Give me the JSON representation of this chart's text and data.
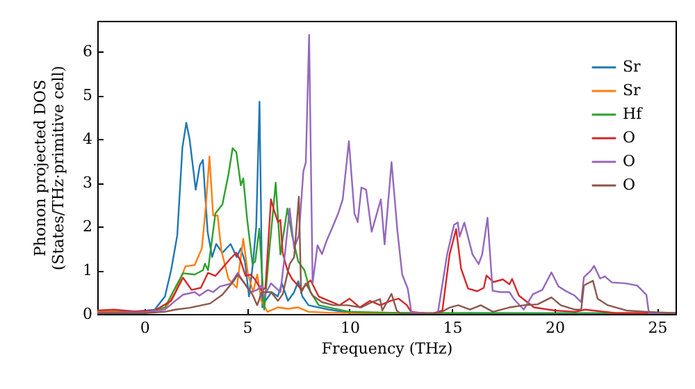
{
  "chart_data": {
    "type": "line",
    "xlabel": "Frequency (THz)",
    "ylabel": "Phonon projected DOS\n(States/THz·primitive cell)",
    "xlim": [
      -2.3,
      25.9
    ],
    "ylim": [
      0,
      6.7
    ],
    "xticks": [
      0,
      5,
      10,
      15,
      20,
      25
    ],
    "yticks": [
      0,
      1,
      2,
      3,
      4,
      5,
      6
    ],
    "legend": "top right",
    "series": [
      {
        "name": "Sr",
        "color": "#1f77b4",
        "x": [
          -2.3,
          -1.5,
          -0.5,
          0.5,
          1.0,
          1.3,
          1.6,
          1.85,
          2.04,
          2.2,
          2.5,
          2.7,
          2.85,
          3.08,
          3.3,
          3.5,
          3.8,
          4.0,
          4.2,
          4.5,
          4.7,
          4.9,
          5.1,
          5.3,
          5.45,
          5.61,
          5.75,
          5.9,
          6.2,
          6.5,
          6.7,
          7.0,
          7.3,
          7.5,
          7.7,
          8.0,
          8.5,
          9.0,
          10.0,
          12.0,
          14,
          16,
          18,
          20,
          22,
          25.9
        ],
        "values": [
          0.05,
          0.07,
          0.05,
          0.1,
          0.4,
          1.0,
          1.8,
          3.8,
          4.37,
          4.0,
          2.84,
          3.4,
          3.52,
          1.88,
          1.3,
          1.6,
          1.4,
          1.5,
          1.6,
          1.3,
          1.5,
          1.2,
          0.4,
          1.2,
          2.0,
          4.85,
          0.15,
          0.3,
          0.5,
          0.4,
          0.7,
          0.3,
          0.5,
          0.75,
          0.4,
          0.2,
          0.15,
          0.1,
          0.03,
          0.02,
          0.01,
          0.02,
          0.02,
          0.02,
          0.02,
          0.02
        ]
      },
      {
        "name": "Sr",
        "color": "#ff7f0e",
        "x": [
          -2.3,
          -1.5,
          0,
          1.0,
          1.5,
          2.0,
          2.45,
          2.8,
          3.0,
          3.17,
          3.35,
          3.57,
          3.75,
          4.1,
          4.5,
          4.82,
          5.04,
          5.3,
          5.5,
          5.7,
          6.0,
          6.5,
          7.0,
          7.5,
          8.0,
          9.0,
          12,
          16
        ],
        "values": [
          0.05,
          0.07,
          0.05,
          0.1,
          0.5,
          1.09,
          1.12,
          1.5,
          2.5,
          3.6,
          2.25,
          2.25,
          1.45,
          0.8,
          0.6,
          1.72,
          0.93,
          0.5,
          0.9,
          0.3,
          0.05,
          0.15,
          0.12,
          0.15,
          0.05,
          0.03,
          0.01,
          0.01
        ]
      },
      {
        "name": "Hf",
        "color": "#2ca02c",
        "x": [
          -2.3,
          -1,
          0,
          1.0,
          1.5,
          1.88,
          2.45,
          2.85,
          2.95,
          3.1,
          3.46,
          3.8,
          4.1,
          4.3,
          4.48,
          4.7,
          4.82,
          5.0,
          5.27,
          5.4,
          5.6,
          5.84,
          6.1,
          6.4,
          6.63,
          6.97,
          7.2,
          7.5,
          7.8,
          8.1,
          8.5,
          9.0,
          10,
          12,
          16,
          20,
          25.9
        ],
        "values": [
          0.03,
          0.04,
          0.04,
          0.15,
          0.6,
          0.93,
          0.9,
          1.0,
          1.15,
          1.0,
          2.3,
          2.5,
          3.2,
          3.79,
          3.7,
          2.94,
          3.1,
          2.2,
          1.14,
          1.2,
          1.95,
          0.1,
          1.5,
          3.0,
          1.36,
          2.41,
          1.8,
          1.2,
          1.0,
          0.5,
          0.2,
          0.15,
          0.05,
          0.03,
          0.02,
          0.01,
          0.01
        ]
      },
      {
        "name": "O",
        "color": "#d62728",
        "x": [
          -2.3,
          -1.5,
          -0.5,
          0.5,
          1.3,
          1.88,
          2.3,
          2.75,
          3.1,
          3.46,
          3.8,
          4.2,
          4.48,
          4.7,
          4.93,
          5.16,
          5.38,
          5.72,
          5.9,
          6.17,
          6.3,
          6.51,
          6.63,
          6.74,
          6.97,
          7.2,
          7.66,
          8.1,
          8.5,
          9.0,
          9.5,
          10,
          10.5,
          11,
          11.5,
          12,
          12.4,
          12.8,
          13.0,
          14.0,
          14.53,
          14.88,
          15.2,
          15.44,
          15.78,
          16.23,
          16.55,
          16.68,
          17.02,
          17.48,
          17.8,
          17.93,
          18.26,
          19.0,
          20.0,
          21.0,
          21.5,
          23,
          25.9
        ],
        "values": [
          0.08,
          0.1,
          0.06,
          0.08,
          0.3,
          0.83,
          0.55,
          0.6,
          0.94,
          0.87,
          1.05,
          1.27,
          1.4,
          1.2,
          0.87,
          0.9,
          0.8,
          0.53,
          0.6,
          2.62,
          2.4,
          2.1,
          2.15,
          1.4,
          1.0,
          0.8,
          0.56,
          0.77,
          0.4,
          0.3,
          0.2,
          0.35,
          0.15,
          0.3,
          0.2,
          0.3,
          0.35,
          0.2,
          0.05,
          0,
          0.08,
          1.36,
          1.94,
          1.04,
          0.58,
          0.52,
          0.6,
          0.88,
          0.73,
          0.79,
          0.68,
          0.8,
          0.42,
          0.15,
          0.08,
          0.05,
          0.1,
          0.02,
          0.02
        ]
      },
      {
        "name": "O",
        "color": "#9467bd",
        "x": [
          -2.3,
          -1,
          0,
          1.0,
          1.5,
          1.88,
          2.45,
          2.68,
          3.1,
          3.35,
          3.68,
          4.2,
          4.55,
          4.82,
          5.16,
          5.5,
          5.72,
          5.84,
          6.17,
          6.63,
          6.85,
          7.08,
          7.3,
          7.53,
          7.75,
          7.87,
          8.03,
          8.2,
          8.44,
          8.66,
          8.89,
          9.22,
          9.45,
          9.67,
          9.97,
          10.24,
          10.4,
          10.58,
          10.81,
          11.08,
          11.53,
          11.71,
          12.05,
          12.34,
          12.57,
          12.84,
          13.02,
          14.3,
          14.76,
          15.1,
          15.28,
          15.37,
          15.6,
          16.0,
          16.3,
          16.47,
          16.73,
          16.98,
          17.35,
          17.8,
          18.0,
          18.5,
          18.94,
          19.4,
          19.85,
          20.19,
          20.53,
          20.98,
          21.3,
          21.43,
          21.77,
          21.93,
          22.22,
          22.45,
          22.8,
          23.46,
          24.03,
          24.48,
          24.6,
          25.9
        ],
        "values": [
          0.03,
          0.04,
          0.04,
          0.1,
          0.3,
          0.44,
          0.5,
          0.42,
          0.55,
          0.5,
          0.63,
          0.69,
          0.94,
          0.74,
          0.5,
          0.55,
          0.66,
          0.4,
          0.7,
          0.5,
          1.37,
          2.41,
          1.5,
          1.8,
          3.26,
          3.47,
          6.38,
          0.7,
          1.57,
          1.37,
          1.68,
          2.04,
          2.3,
          2.62,
          3.95,
          2.3,
          2.1,
          2.89,
          2.84,
          1.88,
          2.62,
          1.59,
          3.47,
          1.88,
          0.9,
          0.58,
          0.03,
          0,
          1.36,
          2.04,
          2.09,
          1.77,
          2.09,
          1.36,
          1.14,
          1.36,
          2.2,
          0.53,
          0.5,
          0.5,
          0.35,
          0.1,
          0.45,
          0.55,
          0.95,
          0.63,
          0.53,
          0.42,
          0.27,
          0.84,
          0.99,
          1.1,
          0.81,
          0.86,
          0.72,
          0.7,
          0.65,
          0.44,
          0.02,
          0
        ]
      },
      {
        "name": "O",
        "color": "#8c564b",
        "x": [
          -2.3,
          0,
          1.0,
          1.5,
          2.2,
          2.6,
          3.2,
          3.8,
          4.36,
          4.55,
          4.82,
          5.27,
          5.5,
          5.72,
          6.17,
          6.51,
          6.74,
          7.08,
          7.3,
          7.53,
          7.64,
          7.87,
          8.2,
          8.66,
          9.22,
          9.9,
          10.58,
          11.0,
          11.49,
          11.6,
          12.05,
          12.3,
          12.5,
          14.0,
          14.5,
          14.9,
          15.3,
          15.88,
          16.4,
          17.0,
          17.8,
          18.5,
          19.17,
          19.85,
          20.3,
          20.98,
          21.3,
          21.43,
          21.87,
          22.1,
          22.6,
          23.5,
          24.5,
          25.9
        ],
        "values": [
          0.02,
          0.02,
          0.05,
          0.1,
          0.14,
          0.18,
          0.24,
          0.44,
          0.76,
          0.9,
          0.74,
          0.44,
          0.2,
          0.5,
          0.5,
          0.3,
          0.45,
          1.14,
          1.3,
          2.68,
          0.48,
          0.7,
          0.42,
          0.27,
          0.2,
          0.2,
          0.15,
          0.25,
          0.34,
          0.08,
          0.46,
          0.08,
          0,
          0,
          0.05,
          0.15,
          0.2,
          0.1,
          0.2,
          0.05,
          0.15,
          0.2,
          0.22,
          0.38,
          0.2,
          0.1,
          0.1,
          0.65,
          0.76,
          0.35,
          0.2,
          0.08,
          0.05,
          0.02
        ]
      }
    ]
  }
}
